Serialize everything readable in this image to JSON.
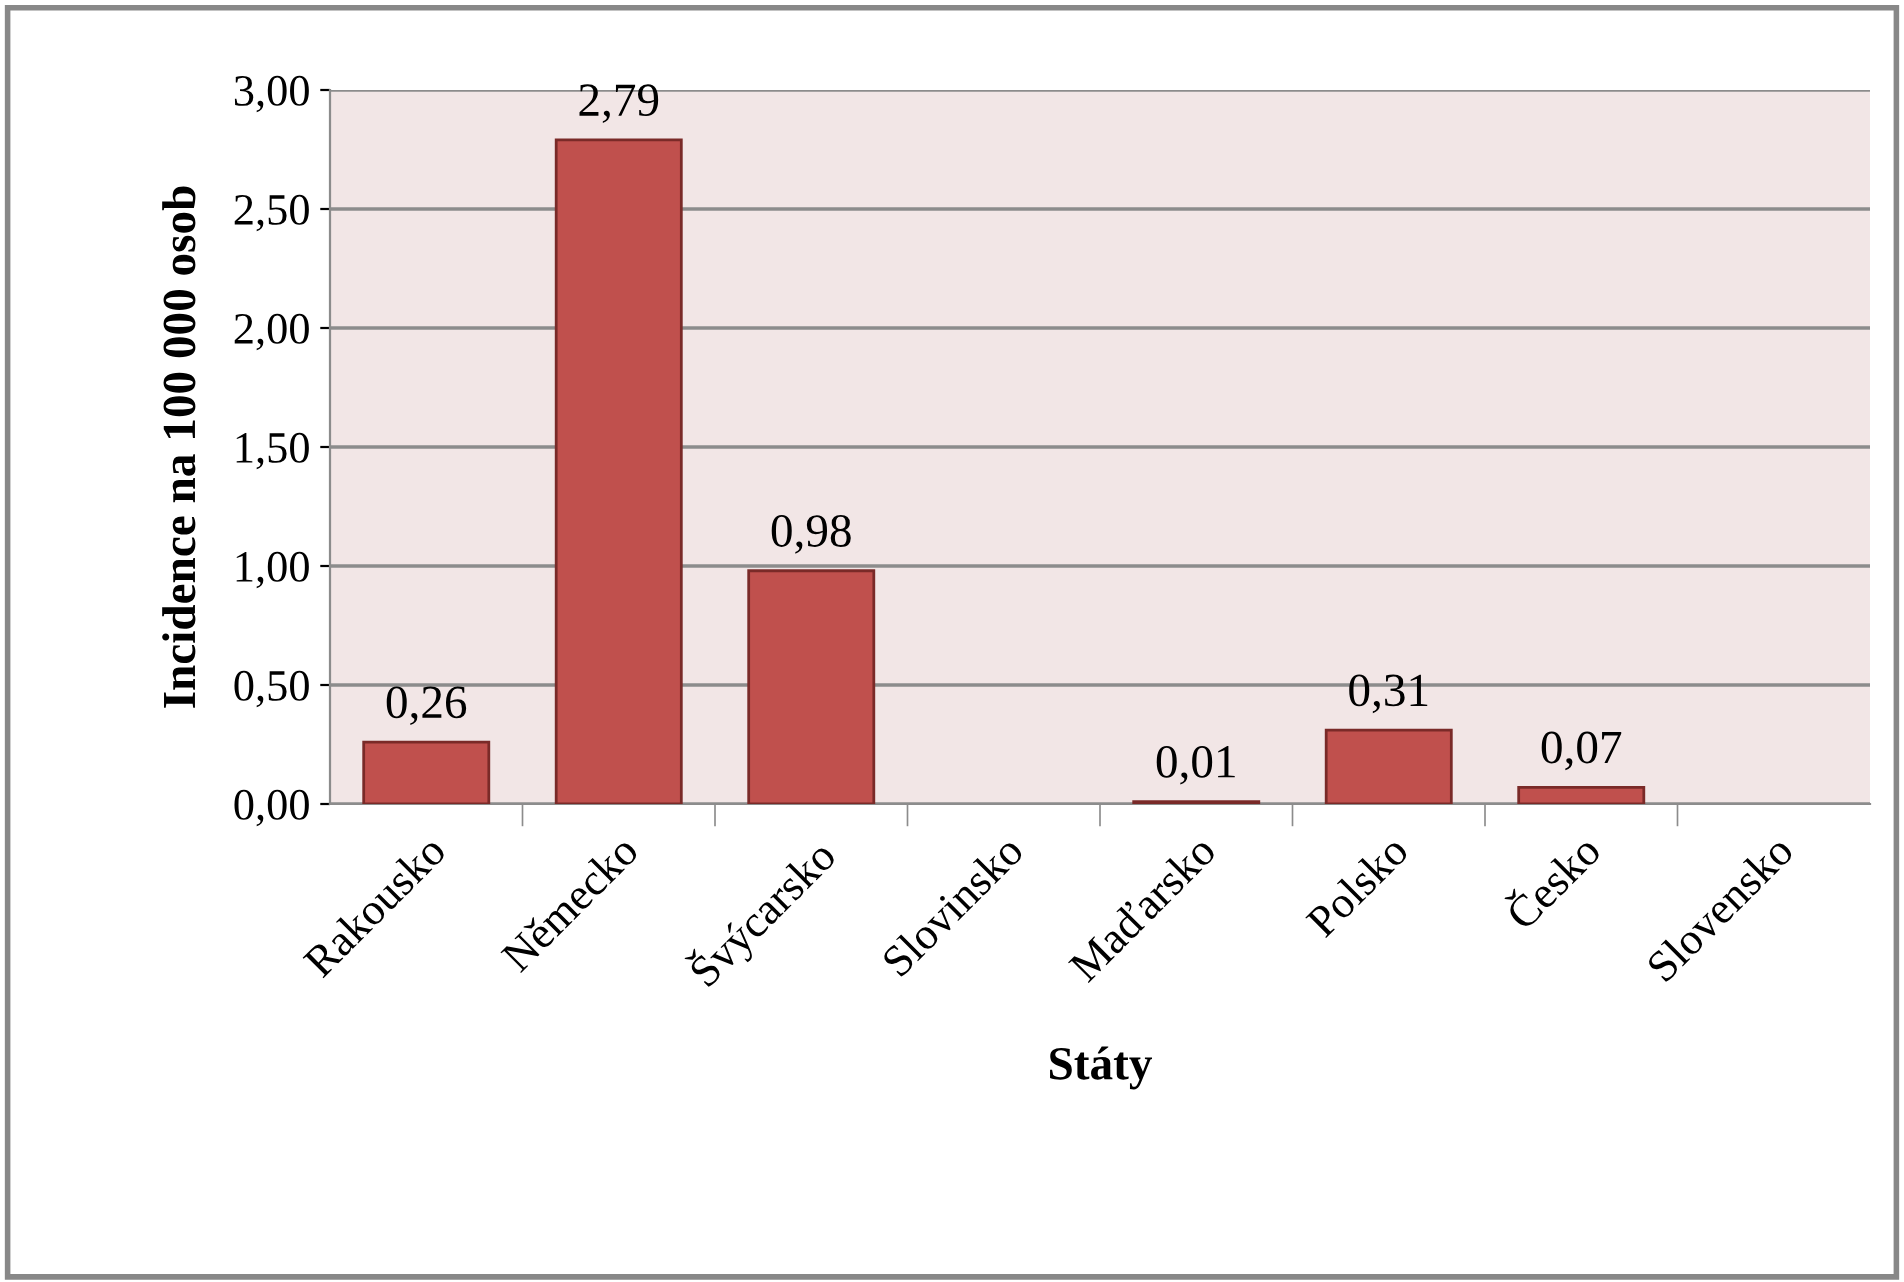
{
  "chart_data": {
    "type": "bar",
    "xlabel": "Státy",
    "ylabel": "Incidence na 100 000 osob",
    "categories": [
      "Rakousko",
      "Německo",
      "Švýcarsko",
      "Slovinsko",
      "Maďarsko",
      "Polsko",
      "Česko",
      "Slovensko"
    ],
    "values": [
      0.26,
      2.79,
      0.98,
      null,
      0.01,
      0.31,
      0.07,
      null
    ],
    "value_labels": [
      "0,26",
      "2,79",
      "0,98",
      null,
      "0,01",
      "0,31",
      "0,07",
      null
    ],
    "color": "#c0504d",
    "ylim": [
      0,
      3
    ],
    "yticks": [
      {
        "value": 0,
        "label": "0,00"
      },
      {
        "value": 0.5,
        "label": "0,50"
      },
      {
        "value": 1,
        "label": "1,00"
      },
      {
        "value": 1.5,
        "label": "1,50"
      },
      {
        "value": 2,
        "label": "2,00"
      },
      {
        "value": 2.5,
        "label": "2,50"
      },
      {
        "value": 3,
        "label": "3,00"
      }
    ],
    "grid": "y",
    "legend": false
  }
}
